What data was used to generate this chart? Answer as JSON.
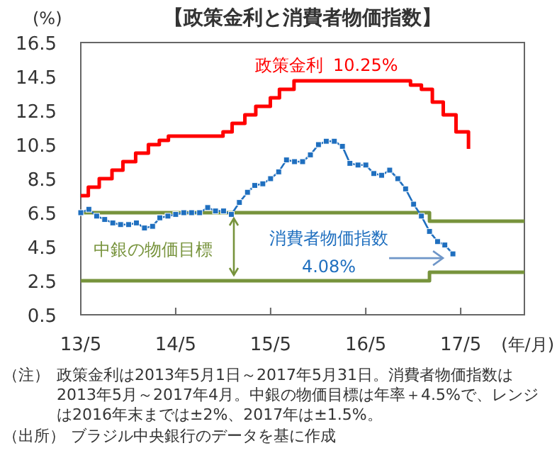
{
  "chart_data": {
    "type": "line",
    "title": "【政策金利と消費者物価指数】",
    "ylabel": "(%)",
    "xlabel": "(年/月)",
    "xlim": [
      "2013-05-01",
      "2018-01-01"
    ],
    "xticks": [
      {
        "value": "2013-05-01",
        "label": "13/5"
      },
      {
        "value": "2014-05-01",
        "label": "14/5"
      },
      {
        "value": "2015-05-01",
        "label": "15/5"
      },
      {
        "value": "2016-05-01",
        "label": "16/5"
      },
      {
        "value": "2017-05-01",
        "label": "17/5"
      }
    ],
    "ylim": [
      0.5,
      16.5
    ],
    "yticks": [
      0.5,
      2.5,
      4.5,
      6.5,
      8.5,
      10.5,
      12.5,
      14.5,
      16.5
    ],
    "grid": false,
    "legend": false,
    "series": [
      {
        "name": "政策金利",
        "type": "step",
        "color": "#ff0000",
        "marker": "none",
        "x": [
          "2013-05-01",
          "2013-05-30",
          "2013-07-11",
          "2013-08-29",
          "2013-10-10",
          "2013-11-28",
          "2014-01-16",
          "2014-02-27",
          "2014-04-03",
          "2014-10-30",
          "2014-12-04",
          "2015-01-22",
          "2015-03-05",
          "2015-04-30",
          "2015-06-04",
          "2015-07-30",
          "2016-10-20",
          "2016-12-01",
          "2017-01-12",
          "2017-02-23",
          "2017-04-13",
          "2017-05-31"
        ],
        "values": [
          7.5,
          8.0,
          8.5,
          9.0,
          9.5,
          10.0,
          10.5,
          10.75,
          11.0,
          11.25,
          11.75,
          12.25,
          12.75,
          13.25,
          13.75,
          14.25,
          14.0,
          13.75,
          13.0,
          12.25,
          11.25,
          10.25
        ]
      },
      {
        "name": "消費者物価指数",
        "color": "#1f6fbf",
        "marker": "square",
        "x": [
          "2013-05",
          "2013-06",
          "2013-07",
          "2013-08",
          "2013-09",
          "2013-10",
          "2013-11",
          "2013-12",
          "2014-01",
          "2014-02",
          "2014-03",
          "2014-04",
          "2014-05",
          "2014-06",
          "2014-07",
          "2014-08",
          "2014-09",
          "2014-10",
          "2014-11",
          "2014-12",
          "2015-01",
          "2015-02",
          "2015-03",
          "2015-04",
          "2015-05",
          "2015-06",
          "2015-07",
          "2015-08",
          "2015-09",
          "2015-10",
          "2015-11",
          "2015-12",
          "2016-01",
          "2016-02",
          "2016-03",
          "2016-04",
          "2016-05",
          "2016-06",
          "2016-07",
          "2016-08",
          "2016-09",
          "2016-10",
          "2016-11",
          "2016-12",
          "2017-01",
          "2017-02",
          "2017-03",
          "2017-04"
        ],
        "values": [
          6.5,
          6.7,
          6.3,
          6.1,
          5.9,
          5.8,
          5.8,
          5.9,
          5.6,
          5.7,
          6.2,
          6.3,
          6.4,
          6.5,
          6.5,
          6.5,
          6.8,
          6.6,
          6.6,
          6.4,
          7.1,
          7.7,
          8.1,
          8.2,
          8.5,
          8.9,
          9.6,
          9.5,
          9.5,
          9.9,
          10.5,
          10.7,
          10.7,
          10.4,
          9.4,
          9.3,
          9.3,
          8.8,
          8.7,
          9.0,
          8.5,
          7.9,
          7.0,
          6.3,
          5.4,
          4.8,
          4.6,
          4.08
        ]
      },
      {
        "name": "中銀の物価目標",
        "type": "step",
        "color": "#77933c",
        "marker": "none",
        "x": [
          "2013-05-01",
          "2017-01-01",
          "2018-01-01"
        ],
        "values": [
          6.5,
          6.0,
          6.0
        ]
      },
      {
        "type": "step",
        "color": "#77933c",
        "marker": "none",
        "x": [
          "2013-05-01",
          "2017-01-01",
          "2018-01-01"
        ],
        "values": [
          2.5,
          3.0,
          3.0
        ]
      }
    ],
    "annotations": [
      "10.25%",
      "4.08%",
      "（注）　政策金利は2013年5月1日～2017年5月31日。消費者物価指数は2013年5月～2017年4月。中銀の物価目標は年率＋4.5%で、レンジは2016年末までは±2%、2017年は±1.5%。",
      "（出所）　ブラジル中央銀行のデータを基に作成"
    ]
  }
}
